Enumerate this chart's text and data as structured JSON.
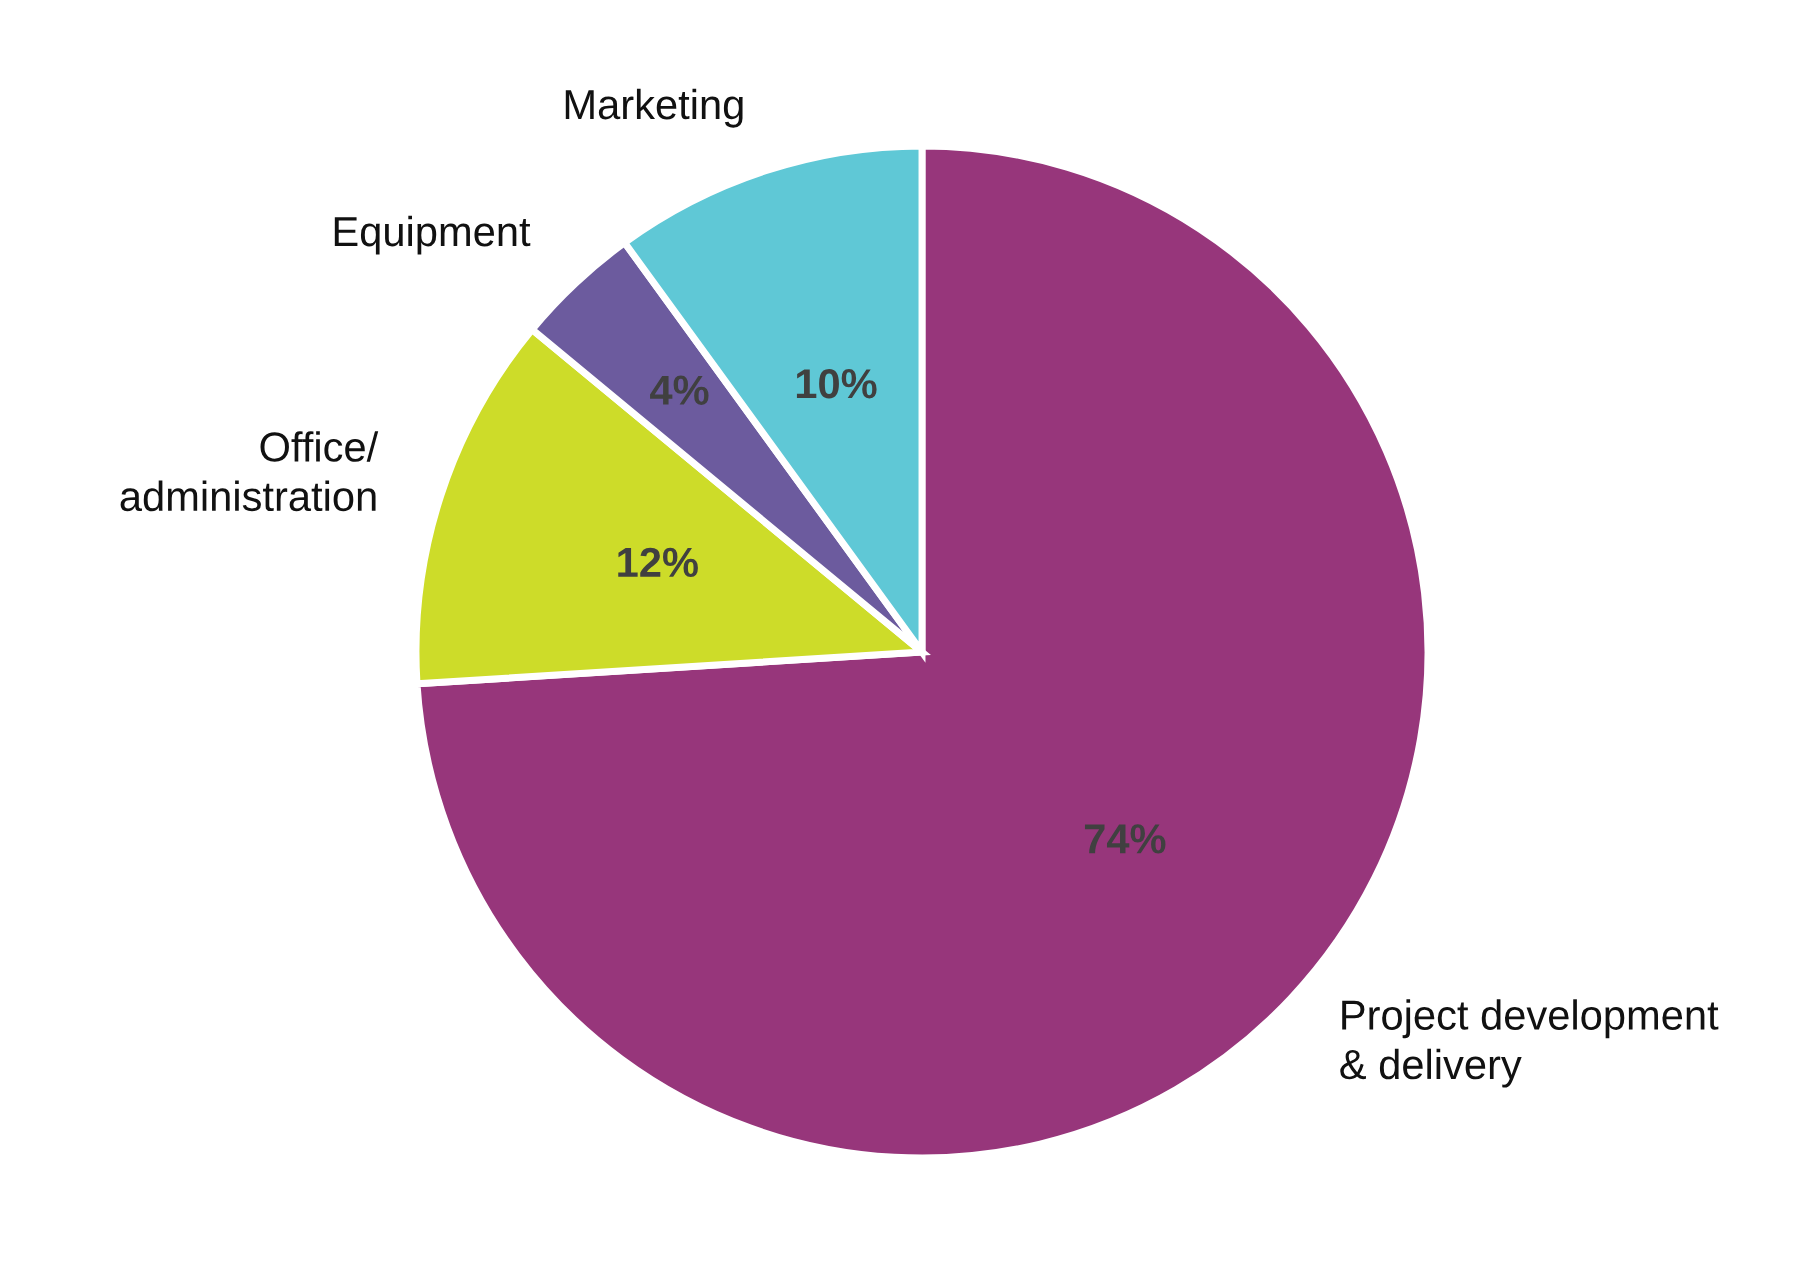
{
  "chart_data": {
    "type": "pie",
    "categories": [
      "Project development\n& delivery",
      "Office/\nadministration",
      "Equipment",
      "Marketing"
    ],
    "values": [
      74,
      12,
      4,
      10
    ],
    "colors": [
      "#97367b",
      "#cddc29",
      "#6c5b9e",
      "#5fc8d6"
    ],
    "value_labels": [
      "74%",
      "12%",
      "4%",
      "10%"
    ]
  }
}
